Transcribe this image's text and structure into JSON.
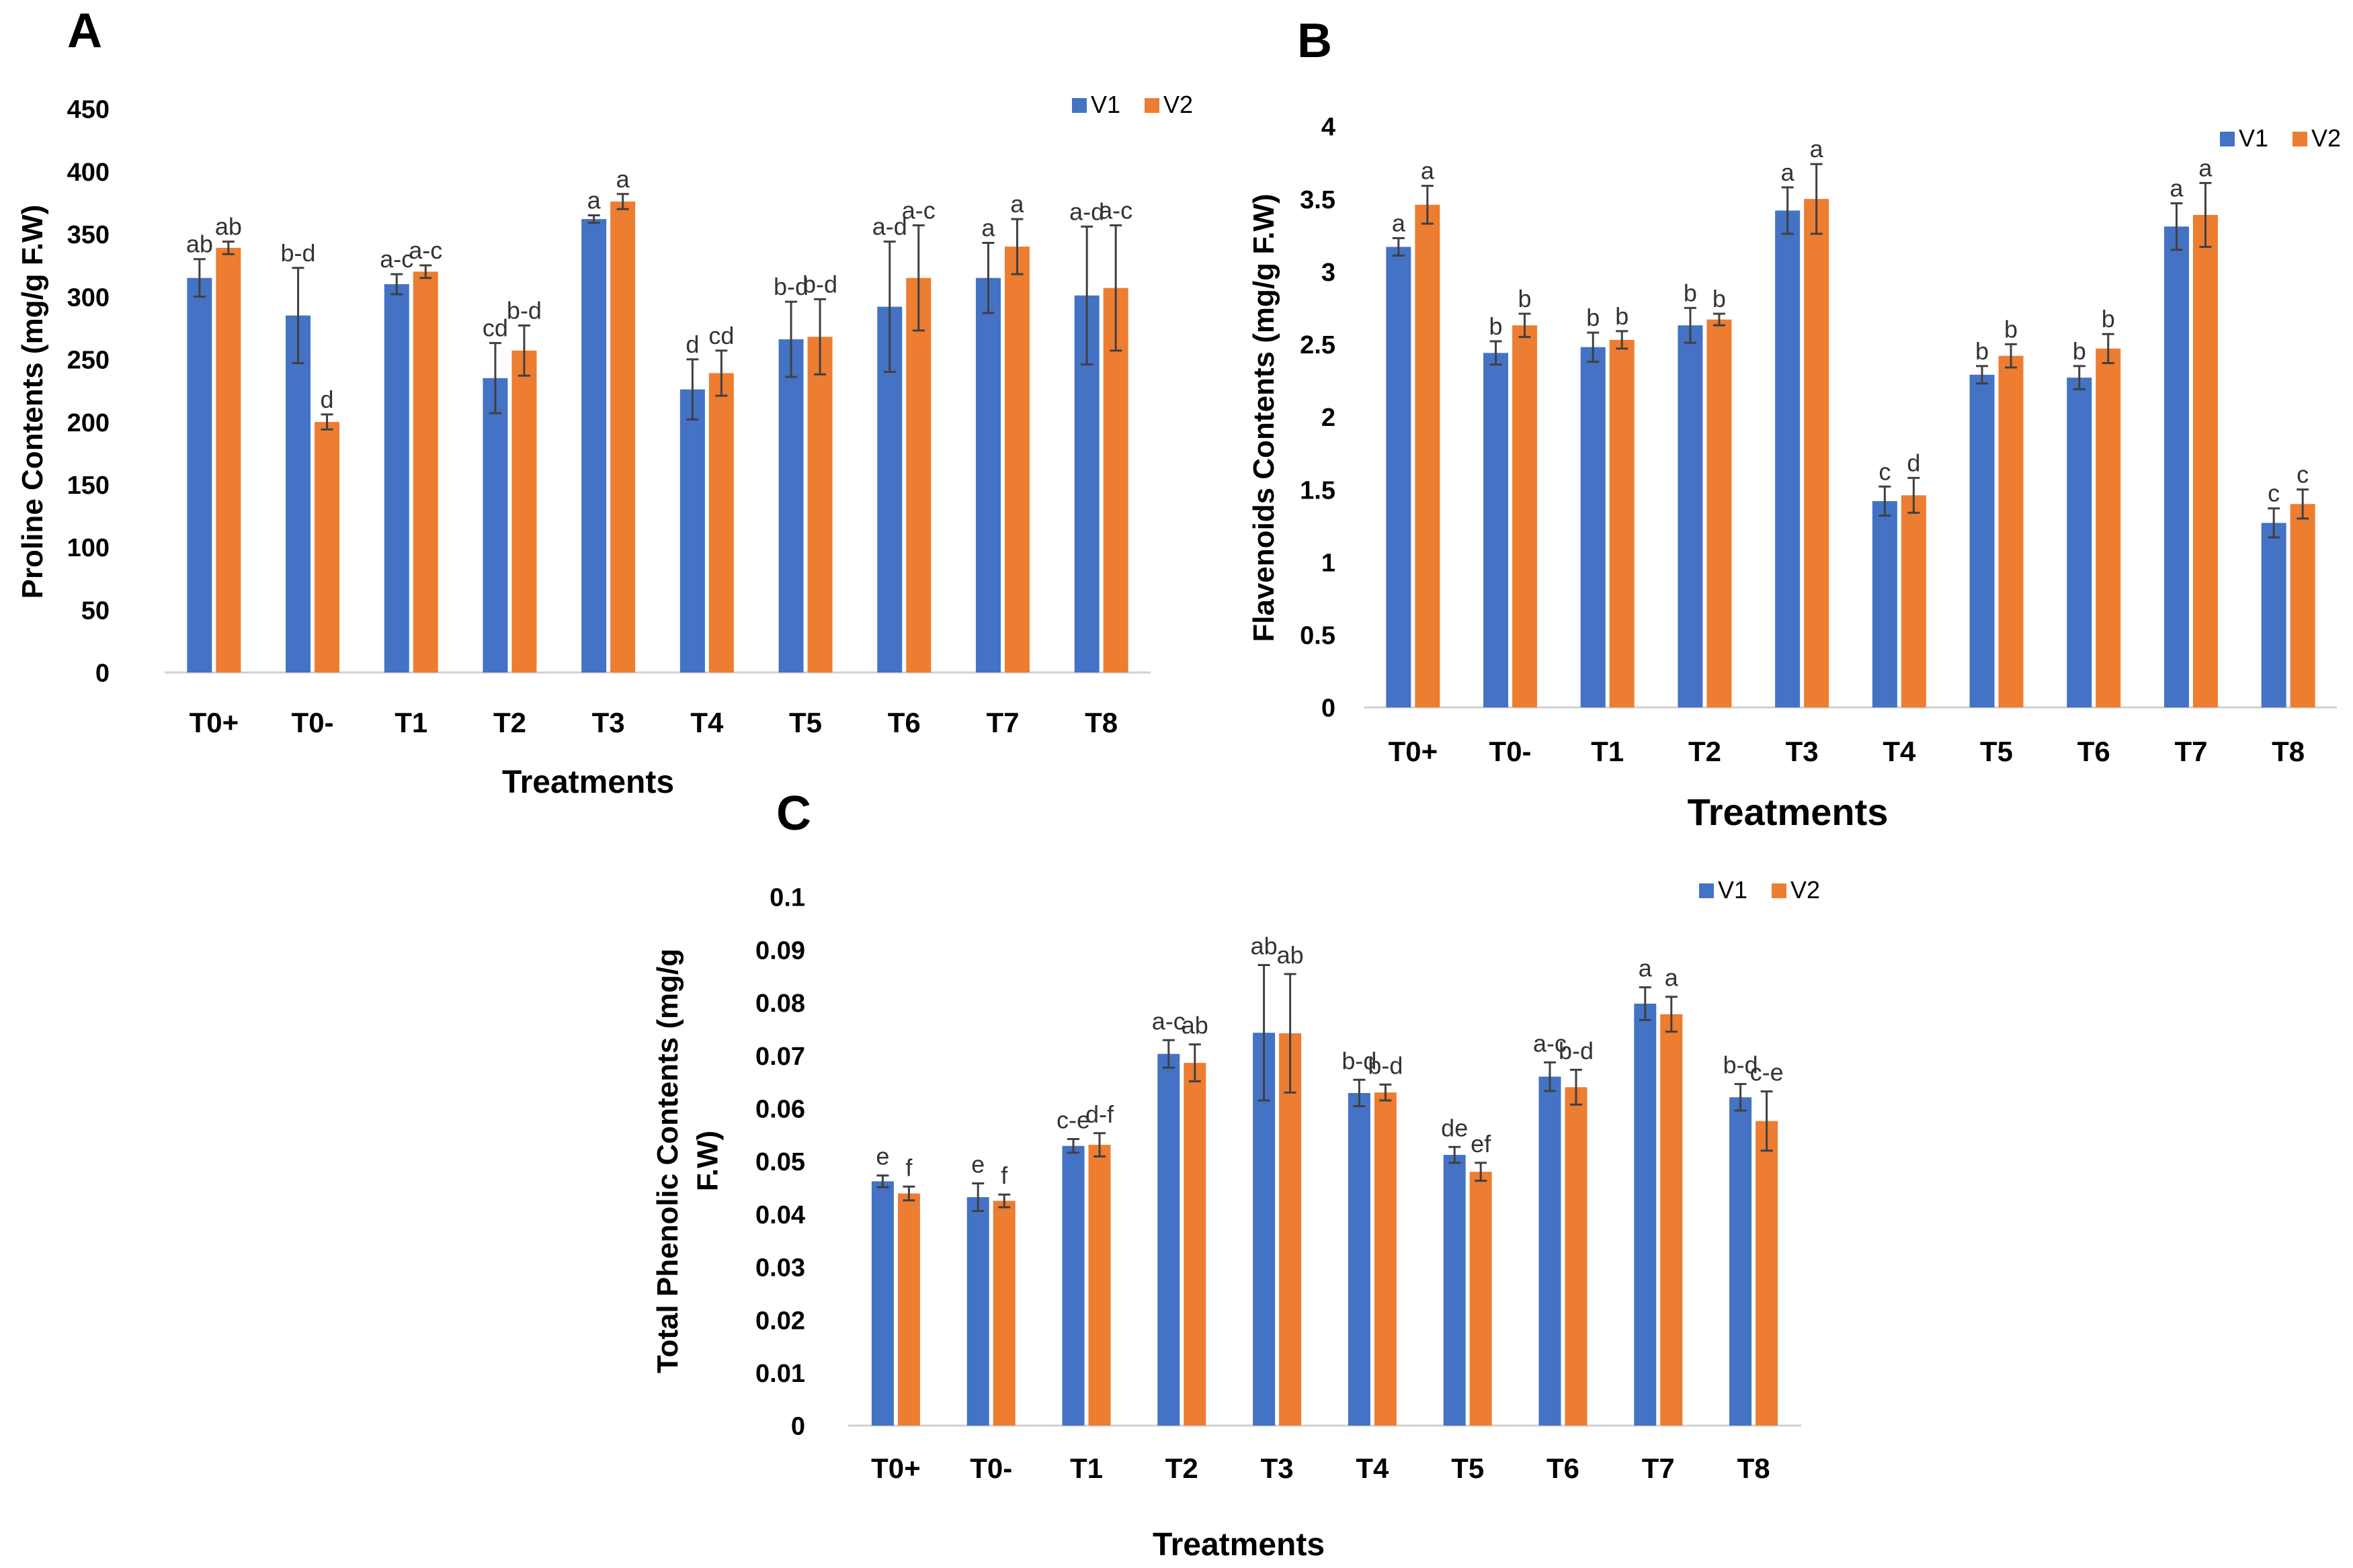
{
  "colors": {
    "V1": "#4472C4",
    "V2": "#ED7D31",
    "error": "#404040",
    "axis": "#d0d0d0"
  },
  "chart_data": [
    {
      "panel": "A",
      "type": "bar",
      "title": "",
      "xlabel": "Treatments",
      "ylabel": "Proline Contents (mg/g F.W)",
      "ylim": [
        0,
        450
      ],
      "yticks": [
        0,
        50,
        100,
        150,
        200,
        250,
        300,
        350,
        400,
        450
      ],
      "ytick_labels": [
        "0",
        "50",
        "100",
        "150",
        "200",
        "250",
        "300",
        "350",
        "400",
        "450"
      ],
      "categories": [
        "T0+",
        "T0-",
        "T1",
        "T2",
        "T3",
        "T4",
        "T5",
        "T6",
        "T7",
        "T8"
      ],
      "legend": [
        "V1",
        "V2"
      ],
      "legend_position": "top-right",
      "series": [
        {
          "name": "V1",
          "values": [
            315,
            285,
            310,
            235,
            362,
            226,
            266,
            292,
            315,
            301
          ],
          "errors": [
            15,
            38,
            8,
            28,
            3,
            24,
            30,
            52,
            28,
            55
          ],
          "labels": [
            "ab",
            "b-d",
            "a-c",
            "cd",
            "a",
            "d",
            "b-d",
            "a-d",
            "a",
            "a-d"
          ]
        },
        {
          "name": "V2",
          "values": [
            339,
            200,
            320,
            257,
            376,
            239,
            268,
            315,
            340,
            307
          ],
          "errors": [
            5,
            6,
            5,
            20,
            6,
            18,
            30,
            42,
            22,
            50
          ],
          "labels": [
            "ab",
            "d",
            "a-c",
            "b-d",
            "a",
            "cd",
            "b-d",
            "a-c",
            "a",
            "a-c"
          ]
        }
      ]
    },
    {
      "panel": "B",
      "type": "bar",
      "title": "",
      "xlabel": "Treatments",
      "ylabel": "Flavenoids Contents (mg/g F.W)",
      "ylim": [
        0,
        4
      ],
      "yticks": [
        0,
        0.5,
        1,
        1.5,
        2,
        2.5,
        3,
        3.5,
        4
      ],
      "ytick_labels": [
        "0",
        "0.5",
        "1",
        "1.5",
        "2",
        "2.5",
        "3",
        "3.5",
        "4"
      ],
      "categories": [
        "T0+",
        "T0-",
        "T1",
        "T2",
        "T3",
        "T4",
        "T5",
        "T6",
        "T7",
        "T8"
      ],
      "legend": [
        "V1",
        "V2"
      ],
      "legend_position": "top-right",
      "series": [
        {
          "name": "V1",
          "values": [
            3.17,
            2.44,
            2.48,
            2.63,
            3.42,
            1.42,
            2.29,
            2.27,
            3.31,
            1.27
          ],
          "errors": [
            0.06,
            0.08,
            0.1,
            0.12,
            0.16,
            0.1,
            0.06,
            0.08,
            0.16,
            0.1
          ],
          "labels": [
            "a",
            "b",
            "b",
            "b",
            "a",
            "c",
            "b",
            "b",
            "a",
            "c"
          ]
        },
        {
          "name": "V2",
          "values": [
            3.46,
            2.63,
            2.53,
            2.67,
            3.5,
            1.46,
            2.42,
            2.47,
            3.39,
            1.4
          ],
          "errors": [
            0.13,
            0.08,
            0.06,
            0.04,
            0.24,
            0.12,
            0.08,
            0.1,
            0.22,
            0.1
          ],
          "labels": [
            "a",
            "b",
            "b",
            "b",
            "a",
            "d",
            "b",
            "b",
            "a",
            "c"
          ]
        }
      ]
    },
    {
      "panel": "C",
      "type": "bar",
      "title": "",
      "xlabel": "Treatments",
      "ylabel": "Total Phenolic Contents (mg/g F.W)",
      "ylabel_lines": [
        "Total Phenolic Contents (mg/g",
        "F.W)"
      ],
      "ylim": [
        0,
        0.1
      ],
      "yticks": [
        0,
        0.01,
        0.02,
        0.03,
        0.04,
        0.05,
        0.06,
        0.07,
        0.08,
        0.09,
        0.1
      ],
      "ytick_labels": [
        "0",
        "0.01",
        "0.02",
        "0.03",
        "0.04",
        "0.05",
        "0.06",
        "0.07",
        "0.08",
        "0.09",
        "0.1"
      ],
      "categories": [
        "T0+",
        "T0-",
        "T1",
        "T2",
        "T3",
        "T4",
        "T5",
        "T6",
        "T7",
        "T8"
      ],
      "legend": [
        "V1",
        "V2"
      ],
      "legend_position": "top-right",
      "series": [
        {
          "name": "V1",
          "values": [
            0.0462,
            0.0432,
            0.0529,
            0.0703,
            0.0743,
            0.0629,
            0.0512,
            0.066,
            0.0798,
            0.0621
          ],
          "errors": [
            0.0011,
            0.0026,
            0.0013,
            0.0026,
            0.0128,
            0.0025,
            0.0015,
            0.0027,
            0.0031,
            0.0025
          ],
          "labels": [
            "e",
            "e",
            "c-e",
            "a-c",
            "ab",
            "b-d",
            "de",
            "a-c",
            "a",
            "b-d"
          ]
        },
        {
          "name": "V2",
          "values": [
            0.0439,
            0.0425,
            0.0531,
            0.0686,
            0.0742,
            0.063,
            0.048,
            0.064,
            0.0778,
            0.0576
          ],
          "errors": [
            0.0013,
            0.0012,
            0.0022,
            0.0035,
            0.0112,
            0.0015,
            0.0017,
            0.0033,
            0.0033,
            0.0056
          ],
          "labels": [
            "f",
            "f",
            "d-f",
            "ab",
            "ab",
            "b-d",
            "ef",
            "b-d",
            "a",
            "c-e"
          ]
        }
      ]
    }
  ]
}
